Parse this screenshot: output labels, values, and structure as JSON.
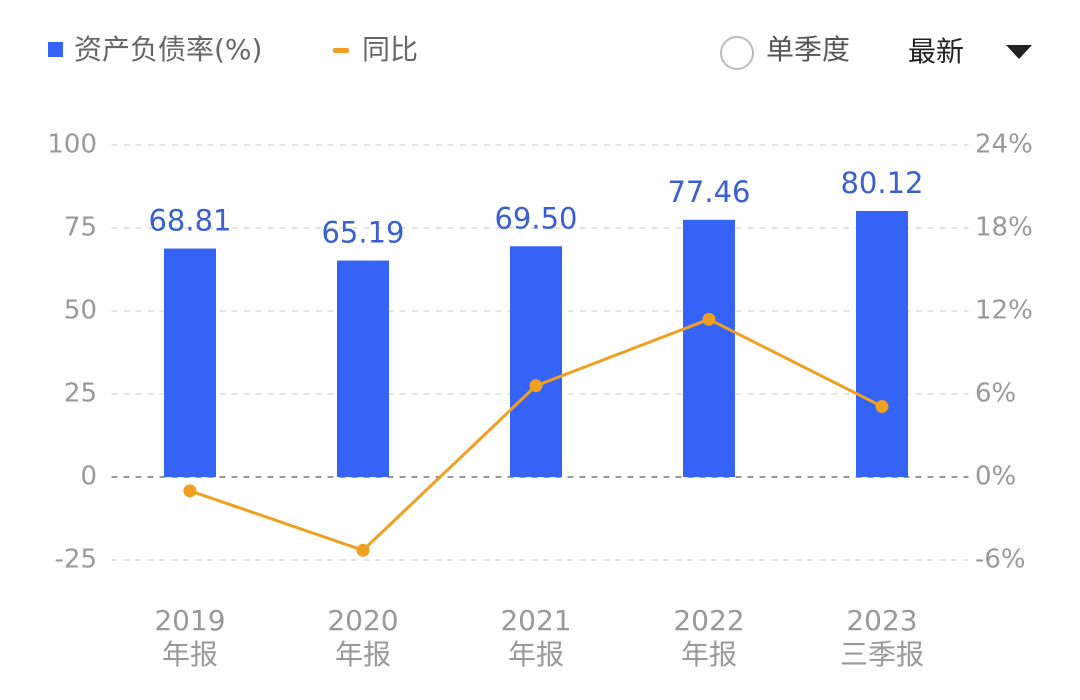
{
  "chart_data": {
    "type": "bar",
    "categories": [
      [
        "2019",
        "年报"
      ],
      [
        "2020",
        "年报"
      ],
      [
        "2021",
        "年报"
      ],
      [
        "2022",
        "年报"
      ],
      [
        "2023",
        "三季报"
      ]
    ],
    "series": [
      {
        "name": "资产负债率(%)",
        "color": "#3563f5",
        "type": "bar",
        "values": [
          68.81,
          65.19,
          69.5,
          77.46,
          80.12
        ],
        "value_labels": [
          "68.81",
          "65.19",
          "69.50",
          "77.46",
          "80.12"
        ]
      },
      {
        "name": "同比",
        "color": "#f0a020",
        "type": "line",
        "axis": "y2",
        "values": [
          -1.0,
          -5.3,
          6.6,
          11.4,
          5.1
        ]
      }
    ],
    "ylim": [
      -25,
      100
    ],
    "yticks": [
      -25,
      0,
      25,
      50,
      75,
      100
    ],
    "y2lim": [
      -6,
      24
    ],
    "y2ticks": [
      {
        "value": -6,
        "label": "-6%"
      },
      {
        "value": 0,
        "label": "0%"
      },
      {
        "value": 6,
        "label": "6%"
      },
      {
        "value": 12,
        "label": "12%"
      },
      {
        "value": 18,
        "label": "18%"
      },
      {
        "value": 24,
        "label": "24%"
      }
    ],
    "grid": true,
    "controls": {
      "single_quarter": "单季度",
      "sort": "最新"
    }
  }
}
